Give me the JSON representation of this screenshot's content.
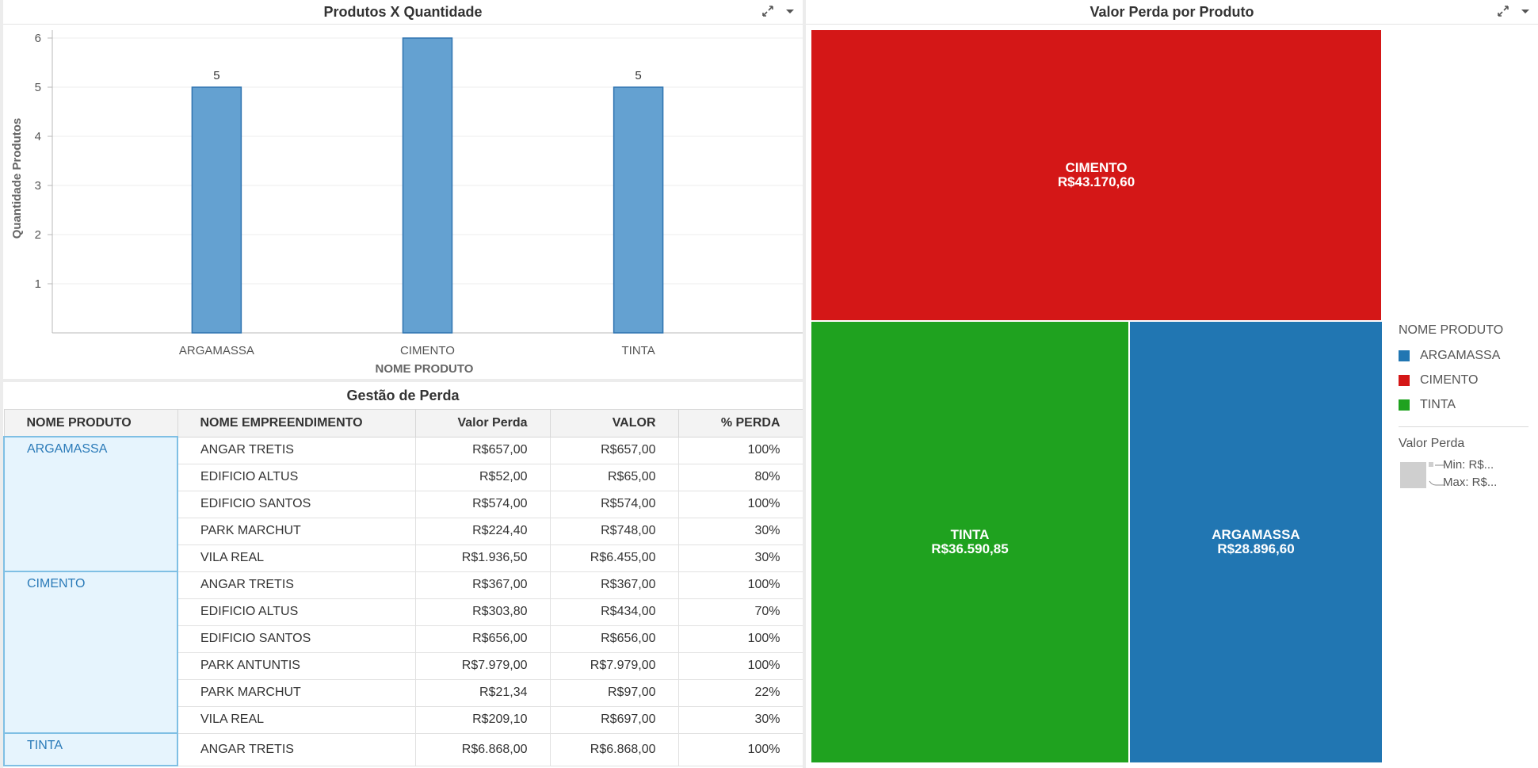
{
  "bar_chart": {
    "title": "Produtos X Quantidade",
    "chart_data": {
      "type": "bar",
      "categories": [
        "ARGAMASSA",
        "CIMENTO",
        "TINTA"
      ],
      "values": [
        5,
        6,
        5
      ],
      "data_labels": [
        "5",
        "",
        "5"
      ],
      "xlabel": "NOME PRODUTO",
      "ylabel": "Quantidade Produtos",
      "ylim": [
        0,
        6
      ],
      "yticks": [
        "1",
        "2",
        "3",
        "4",
        "5",
        "6"
      ],
      "grid": true,
      "bar_color": "#5f9ecf"
    }
  },
  "table": {
    "title": "Gestão de Perda",
    "columns": [
      "NOME PRODUTO",
      "NOME EMPREENDIMENTO",
      "Valor Perda",
      "VALOR",
      "% PERDA"
    ],
    "groups": [
      {
        "name": "ARGAMASSA",
        "rows": [
          [
            "ANGAR TRETIS",
            "R$657,00",
            "R$657,00",
            "100%"
          ],
          [
            "EDIFICIO ALTUS",
            "R$52,00",
            "R$65,00",
            "80%"
          ],
          [
            "EDIFICIO SANTOS",
            "R$574,00",
            "R$574,00",
            "100%"
          ],
          [
            "PARK MARCHUT",
            "R$224,40",
            "R$748,00",
            "30%"
          ],
          [
            "VILA REAL",
            "R$1.936,50",
            "R$6.455,00",
            "30%"
          ]
        ]
      },
      {
        "name": "CIMENTO",
        "rows": [
          [
            "ANGAR TRETIS",
            "R$367,00",
            "R$367,00",
            "100%"
          ],
          [
            "EDIFICIO ALTUS",
            "R$303,80",
            "R$434,00",
            "70%"
          ],
          [
            "EDIFICIO SANTOS",
            "R$656,00",
            "R$656,00",
            "100%"
          ],
          [
            "PARK ANTUNTIS",
            "R$7.979,00",
            "R$7.979,00",
            "100%"
          ],
          [
            "PARK MARCHUT",
            "R$21,34",
            "R$97,00",
            "22%"
          ],
          [
            "VILA REAL",
            "R$209,10",
            "R$697,00",
            "30%"
          ]
        ]
      },
      {
        "name": "TINTA",
        "rows": [
          [
            "ANGAR TRETIS",
            "R$6.868,00",
            "R$6.868,00",
            "100%"
          ]
        ]
      }
    ]
  },
  "treemap": {
    "title": "Valor Perda por Produto",
    "chart_data": {
      "type": "treemap",
      "items": [
        {
          "name": "CIMENTO",
          "label": "R$43.170,60",
          "value": 43170.6,
          "color": "#d41717"
        },
        {
          "name": "TINTA",
          "label": "R$36.590,85",
          "value": 36590.85,
          "color": "#1fa21f"
        },
        {
          "name": "ARGAMASSA",
          "label": "R$28.896,60",
          "value": 28896.6,
          "color": "#2176b2"
        }
      ]
    },
    "legend": {
      "title": "NOME PRODUTO",
      "items": [
        {
          "label": "ARGAMASSA",
          "color": "#2176b2"
        },
        {
          "label": "CIMENTO",
          "color": "#d41717"
        },
        {
          "label": "TINTA",
          "color": "#1fa21f"
        }
      ],
      "size_title": "Valor Perda",
      "size_min": "Min: R$...",
      "size_max": "Max: R$..."
    }
  },
  "icons": {
    "expand": "expand-icon",
    "menu": "dropdown-arrow-icon"
  }
}
